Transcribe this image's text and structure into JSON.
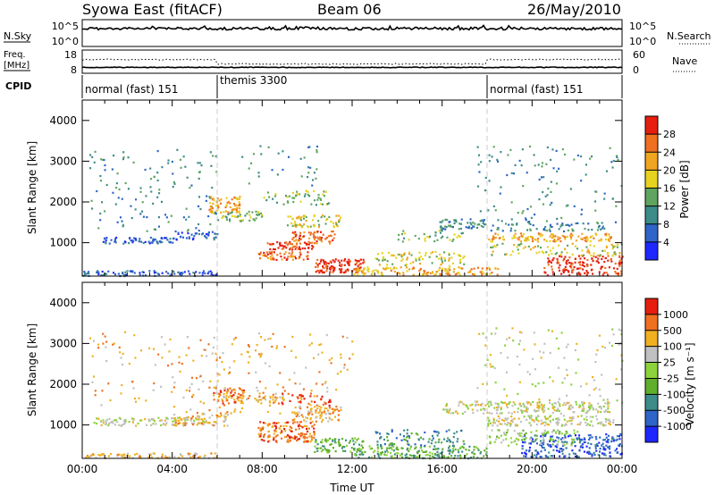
{
  "header": {
    "station": "Syowa East (fitACF)",
    "beam": "Beam 06",
    "date": "26/May/2010"
  },
  "summary": {
    "nsky_label": "N.Sky",
    "nsky_ticks": [
      "10^5",
      "10^0"
    ],
    "nsearch_label": "N.Search",
    "nsearch_ticks": [
      "10^5",
      "10^0"
    ],
    "freq_label_1": "Freq.",
    "freq_label_2": "[MHz]",
    "freq_ticks": [
      "18",
      "8"
    ],
    "nave_label": "Nave",
    "nave_ticks": [
      "60",
      "0"
    ],
    "cpid_label": "CPID",
    "cpid_segments": [
      {
        "label": "normal (fast) 151",
        "start_hour": 0,
        "end_hour": 6
      },
      {
        "label": "themis 3300",
        "start_hour": 6,
        "end_hour": 18
      },
      {
        "label": "normal (fast) 151",
        "start_hour": 18,
        "end_hour": 24
      }
    ]
  },
  "chart_data": [
    {
      "type": "heatmap",
      "name": "power",
      "ylabel": "Slant Range [km]",
      "xlabel": "",
      "ylim": [
        180,
        4500
      ],
      "xlim": [
        0,
        24
      ],
      "yticks": [
        "1000",
        "2000",
        "3000",
        "4000"
      ],
      "colorbar": {
        "label": "Power [dB]",
        "ticks": [
          "4",
          "8",
          "12",
          "16",
          "20",
          "24",
          "28"
        ],
        "colors": [
          "#1f27ff",
          "#2f64c8",
          "#3d8c8a",
          "#5fa55f",
          "#e6d320",
          "#f0a520",
          "#ef7020",
          "#e61e0e"
        ],
        "range": [
          0,
          32
        ]
      },
      "scatter_regions": [
        {
          "x": [
            0.9,
            4.2
          ],
          "y": [
            1000,
            1150
          ],
          "level": 1,
          "density": 0.75
        },
        {
          "x": [
            4.2,
            6.0
          ],
          "y": [
            1100,
            1300
          ],
          "level": 1,
          "density": 0.5
        },
        {
          "x": [
            0.0,
            6.0
          ],
          "y": [
            200,
            330
          ],
          "level": 1,
          "density": 0.6
        },
        {
          "x": [
            0.3,
            6.0
          ],
          "y": [
            1300,
            3300
          ],
          "level": 2,
          "density": 0.06
        },
        {
          "x": [
            5.6,
            7.0
          ],
          "y": [
            1750,
            2150
          ],
          "level": 5,
          "density": 0.6
        },
        {
          "x": [
            6.0,
            8.0
          ],
          "y": [
            1550,
            1800
          ],
          "level": 3,
          "density": 0.5
        },
        {
          "x": [
            8.0,
            11.0
          ],
          "y": [
            1950,
            2300
          ],
          "level": 3,
          "density": 0.25
        },
        {
          "x": [
            7.0,
            10.5
          ],
          "y": [
            2400,
            3400
          ],
          "level": 2,
          "density": 0.05
        },
        {
          "x": [
            9.3,
            11.2
          ],
          "y": [
            1000,
            1300
          ],
          "level": 6,
          "density": 0.6
        },
        {
          "x": [
            9.0,
            11.5
          ],
          "y": [
            1400,
            1700
          ],
          "level": 4,
          "density": 0.45
        },
        {
          "x": [
            8.2,
            10.3
          ],
          "y": [
            850,
            1050
          ],
          "level": 7,
          "density": 0.7
        },
        {
          "x": [
            7.8,
            10.0
          ],
          "y": [
            600,
            800
          ],
          "level": 6,
          "density": 0.7
        },
        {
          "x": [
            10.3,
            12.5
          ],
          "y": [
            280,
            620
          ],
          "level": 7,
          "density": 0.75
        },
        {
          "x": [
            12.0,
            18.5
          ],
          "y": [
            220,
            420
          ],
          "level": 5,
          "density": 0.55
        },
        {
          "x": [
            13.0,
            17.0
          ],
          "y": [
            450,
            800
          ],
          "level": 4,
          "density": 0.3
        },
        {
          "x": [
            14.0,
            17.2
          ],
          "y": [
            1050,
            1350
          ],
          "level": 3,
          "density": 0.2
        },
        {
          "x": [
            15.8,
            18.0
          ],
          "y": [
            1350,
            1600
          ],
          "level": 2,
          "density": 0.55
        },
        {
          "x": [
            18.0,
            23.6
          ],
          "y": [
            1050,
            1250
          ],
          "level": 5,
          "density": 0.55
        },
        {
          "x": [
            18.0,
            23.5
          ],
          "y": [
            1300,
            1500
          ],
          "level": 2,
          "density": 0.3
        },
        {
          "x": [
            20.5,
            24.0
          ],
          "y": [
            220,
            700
          ],
          "level": 7,
          "density": 0.45
        },
        {
          "x": [
            18.0,
            24.0
          ],
          "y": [
            700,
            1000
          ],
          "level": 4,
          "density": 0.25
        },
        {
          "x": [
            17.5,
            24.0
          ],
          "y": [
            1500,
            3400
          ],
          "level": 2,
          "density": 0.05
        }
      ]
    },
    {
      "type": "heatmap",
      "name": "velocity",
      "ylabel": "Slant Range [km]",
      "xlabel": "Time UT",
      "ylim": [
        180,
        4500
      ],
      "xlim": [
        0,
        24
      ],
      "yticks": [
        "1000",
        "2000",
        "3000",
        "4000"
      ],
      "xticks": [
        "00:00",
        "04:00",
        "08:00",
        "12:00",
        "16:00",
        "20:00",
        "00:00"
      ],
      "colorbar": {
        "label": "Velocity [m s⁻¹]",
        "ticks": [
          "1000",
          "500",
          "100",
          "25",
          "-25",
          "-100",
          "-500",
          "-1000"
        ],
        "colors": [
          "#1f27ff",
          "#2f64c8",
          "#3d8c8a",
          "#5fae2c",
          "#8cd23c",
          "#c0c0c0",
          "#f0b020",
          "#ef7020",
          "#e61e0e"
        ],
        "range": [
          -1000,
          1000
        ]
      },
      "scatter_regions": [
        {
          "x": [
            0.5,
            6.0
          ],
          "y": [
            1000,
            1200
          ],
          "level": 5,
          "density": 0.55
        },
        {
          "x": [
            0.0,
            6.0
          ],
          "y": [
            200,
            330
          ],
          "level": 6,
          "density": 0.55
        },
        {
          "x": [
            4.0,
            6.5
          ],
          "y": [
            1000,
            1350
          ],
          "level": 6,
          "density": 0.4
        },
        {
          "x": [
            5.8,
            7.2
          ],
          "y": [
            1550,
            1950
          ],
          "level": 7,
          "density": 0.6
        },
        {
          "x": [
            7.0,
            9.0
          ],
          "y": [
            1550,
            1800
          ],
          "level": 6,
          "density": 0.4
        },
        {
          "x": [
            7.8,
            10.3
          ],
          "y": [
            600,
            1100
          ],
          "level": 7,
          "density": 0.65
        },
        {
          "x": [
            9.3,
            11.5
          ],
          "y": [
            1100,
            1500
          ],
          "level": 6,
          "density": 0.5
        },
        {
          "x": [
            8.8,
            11.0
          ],
          "y": [
            1500,
            1800
          ],
          "level": 8,
          "density": 0.25
        },
        {
          "x": [
            10.3,
            12.5
          ],
          "y": [
            350,
            700
          ],
          "level": 3,
          "density": 0.55
        },
        {
          "x": [
            12.0,
            18.0
          ],
          "y": [
            200,
            500
          ],
          "level": 3,
          "density": 0.55
        },
        {
          "x": [
            13.0,
            17.0
          ],
          "y": [
            500,
            900
          ],
          "level": 2,
          "density": 0.3
        },
        {
          "x": [
            16.0,
            23.5
          ],
          "y": [
            1300,
            1600
          ],
          "level": 5,
          "density": 0.5
        },
        {
          "x": [
            18.0,
            23.6
          ],
          "y": [
            1000,
            1250
          ],
          "level": 5,
          "density": 0.55
        },
        {
          "x": [
            19.5,
            24.0
          ],
          "y": [
            220,
            800
          ],
          "level": 1,
          "density": 0.45
        },
        {
          "x": [
            18.0,
            22.0
          ],
          "y": [
            500,
            900
          ],
          "level": 4,
          "density": 0.3
        },
        {
          "x": [
            0.3,
            12.0
          ],
          "y": [
            1300,
            3300
          ],
          "level": 6,
          "density": 0.05
        },
        {
          "x": [
            17.5,
            24.0
          ],
          "y": [
            1500,
            3400
          ],
          "level": 5,
          "density": 0.05
        }
      ]
    }
  ]
}
